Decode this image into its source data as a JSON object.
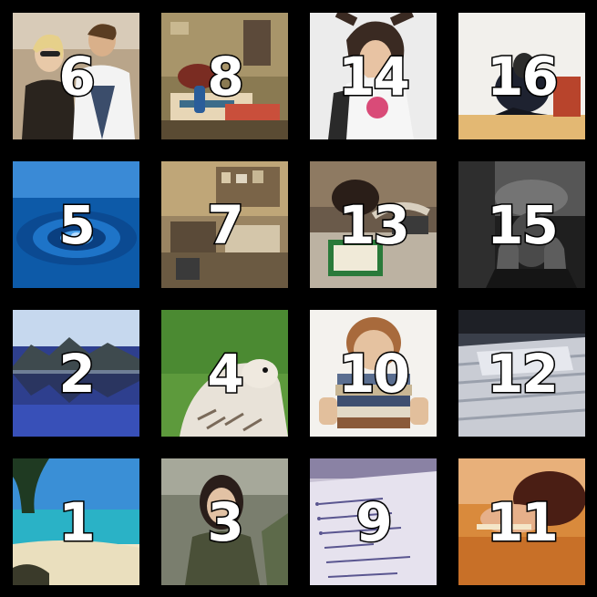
{
  "tiles": [
    {
      "number": "6",
      "scene": "two-people-street-photo"
    },
    {
      "number": "8",
      "scene": "student-desk-books-photo"
    },
    {
      "number": "14",
      "scene": "stressed-woman-photo"
    },
    {
      "number": "16",
      "scene": "person-crouching-photo"
    },
    {
      "number": "5",
      "scene": "water-ripple-photo"
    },
    {
      "number": "7",
      "scene": "cluttered-office-photo"
    },
    {
      "number": "13",
      "scene": "man-sleeping-on-desk-photo"
    },
    {
      "number": "15",
      "scene": "head-in-hands-photo"
    },
    {
      "number": "2",
      "scene": "mountain-lake-reflection-photo"
    },
    {
      "number": "4",
      "scene": "falcon-bird-photo"
    },
    {
      "number": "10",
      "scene": "person-behind-book-stack-photo"
    },
    {
      "number": "12",
      "scene": "paper-pile-photo"
    },
    {
      "number": "1",
      "scene": "tropical-beach-photo"
    },
    {
      "number": "3",
      "scene": "smiling-woman-outdoors-photo"
    },
    {
      "number": "9",
      "scene": "handwritten-list-photo"
    },
    {
      "number": "11",
      "scene": "person-asleep-on-table-photo"
    }
  ]
}
